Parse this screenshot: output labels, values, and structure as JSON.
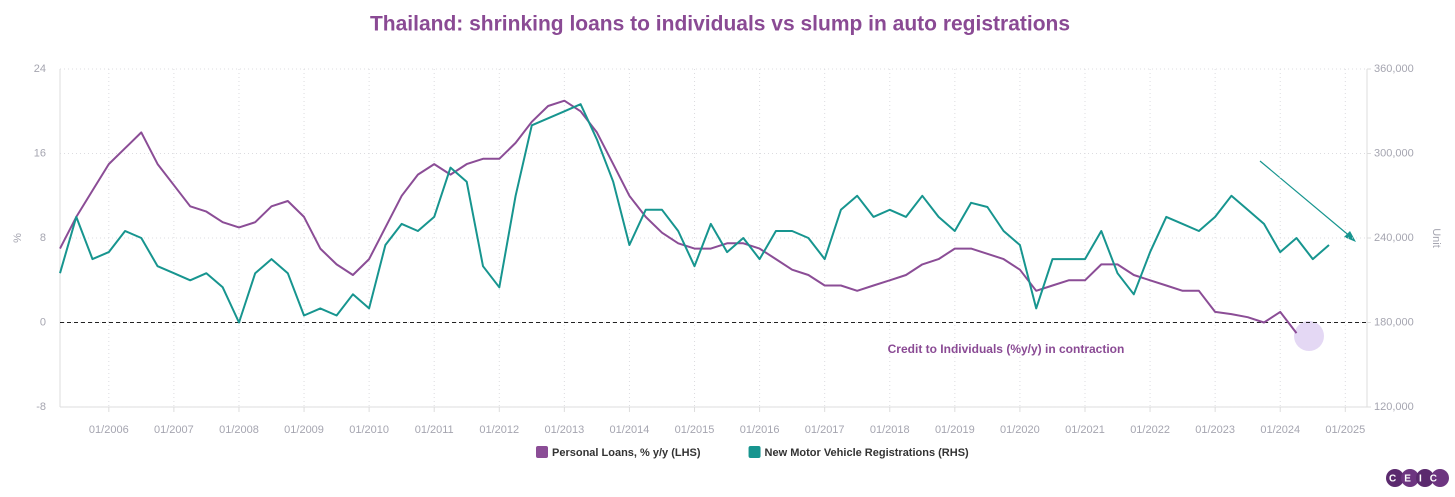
{
  "chart_data": {
    "type": "line",
    "title": "Thailand: shrinking loans to individuals vs slump in auto registrations",
    "y_label": "%",
    "y2_label": "Unit",
    "x": [
      "04/2005",
      "07/2005",
      "10/2005",
      "01/2006",
      "04/2006",
      "07/2006",
      "10/2006",
      "01/2007",
      "04/2007",
      "07/2007",
      "10/2007",
      "01/2008",
      "04/2008",
      "07/2008",
      "10/2008",
      "01/2009",
      "04/2009",
      "07/2009",
      "10/2009",
      "01/2010",
      "04/2010",
      "07/2010",
      "10/2010",
      "01/2011",
      "04/2011",
      "07/2011",
      "10/2011",
      "01/2012",
      "04/2012",
      "07/2012",
      "10/2012",
      "01/2013",
      "04/2013",
      "07/2013",
      "10/2013",
      "01/2014",
      "04/2014",
      "07/2014",
      "10/2014",
      "01/2015",
      "04/2015",
      "07/2015",
      "10/2015",
      "01/2016",
      "04/2016",
      "07/2016",
      "10/2016",
      "01/2017",
      "04/2017",
      "07/2017",
      "10/2017",
      "01/2018",
      "04/2018",
      "07/2018",
      "10/2018",
      "01/2019",
      "04/2019",
      "07/2019",
      "10/2019",
      "01/2020",
      "04/2020",
      "07/2020",
      "10/2020",
      "01/2021",
      "04/2021",
      "07/2021",
      "10/2021",
      "01/2022",
      "04/2022",
      "07/2022",
      "10/2022",
      "01/2023",
      "04/2023",
      "07/2023",
      "10/2023",
      "01/2024",
      "04/2024",
      "07/2024",
      "10/2024"
    ],
    "series": [
      {
        "name": "Personal Loans, % y/y (LHS)",
        "color": "#8b4d96",
        "axis": "y",
        "values": [
          7,
          10,
          12.5,
          15,
          16.5,
          18,
          15,
          13,
          11,
          10.5,
          9.5,
          9,
          9.5,
          11,
          11.5,
          10,
          7,
          5.5,
          4.5,
          6,
          9,
          12,
          14,
          15,
          14,
          15,
          15.5,
          15.5,
          17,
          19,
          20.5,
          21,
          20,
          18,
          15,
          12,
          10,
          8.5,
          7.5,
          7,
          7,
          7.5,
          7.5,
          7,
          6,
          5,
          4.5,
          3.5,
          3.5,
          3,
          3.5,
          4,
          4.5,
          5.5,
          6,
          7,
          7,
          6.5,
          6,
          5,
          3,
          3.5,
          4,
          4,
          5.5,
          5.5,
          4.5,
          4,
          3.5,
          3,
          3,
          1,
          0.8,
          0.5,
          0,
          1,
          -1,
          null,
          null
        ]
      },
      {
        "name": "New Motor Vehicle Registrations (RHS)",
        "color": "#17958f",
        "axis": "y2",
        "values": [
          215000,
          255000,
          225000,
          230000,
          245000,
          240000,
          220000,
          215000,
          210000,
          215000,
          205000,
          180000,
          215000,
          225000,
          215000,
          185000,
          190000,
          185000,
          200000,
          190000,
          235000,
          250000,
          245000,
          255000,
          290000,
          280000,
          220000,
          205000,
          270000,
          320000,
          325000,
          330000,
          335000,
          310000,
          280000,
          235000,
          260000,
          260000,
          245000,
          220000,
          250000,
          230000,
          240000,
          225000,
          245000,
          245000,
          240000,
          225000,
          260000,
          270000,
          255000,
          260000,
          255000,
          270000,
          255000,
          245000,
          265000,
          262000,
          245000,
          235000,
          190000,
          225000,
          225000,
          225000,
          245000,
          215000,
          200000,
          230000,
          255000,
          250000,
          245000,
          255000,
          270000,
          260000,
          250000,
          230000,
          240000,
          225000,
          235000
        ]
      }
    ],
    "xlim": [
      "04/2005",
      "05/2025"
    ],
    "xticks": [
      "01/2006",
      "01/2007",
      "01/2008",
      "01/2009",
      "01/2010",
      "01/2011",
      "01/2012",
      "01/2013",
      "01/2014",
      "01/2015",
      "01/2016",
      "01/2017",
      "01/2018",
      "01/2019",
      "01/2020",
      "01/2021",
      "01/2022",
      "01/2023",
      "01/2024",
      "01/2025"
    ],
    "ylim": [
      -8,
      24
    ],
    "yticks": [
      -8,
      0,
      8,
      16,
      24
    ],
    "y2lim": [
      120000,
      360000
    ],
    "y2ticks": [
      {
        "value": 120000,
        "label": "120,000"
      },
      {
        "value": 180000,
        "label": "180,000"
      },
      {
        "value": 240000,
        "label": "240,000"
      },
      {
        "value": 300000,
        "label": "300,000"
      },
      {
        "value": 360000,
        "label": "360,000"
      }
    ],
    "reference_line": 0,
    "annotation": "Credit to Individuals (%y/y) in contraction",
    "grid": true,
    "legend": "bottom",
    "logo": "CEIC"
  }
}
